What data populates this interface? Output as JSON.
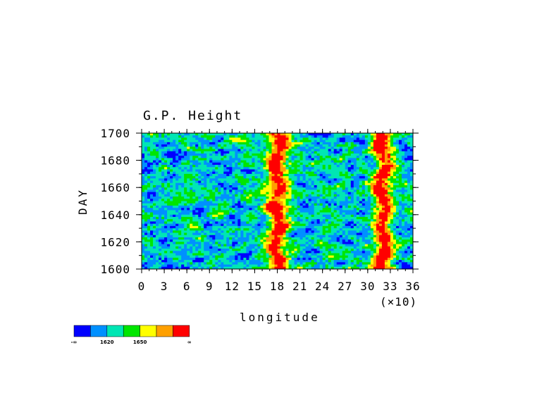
{
  "chart_data": {
    "type": "heatmap",
    "title": "G.P. Height",
    "xlabel": "longitude",
    "ylabel": "DAY",
    "x_multiplier_label": "(×10)",
    "x_ticks": [
      "0",
      "3",
      "6",
      "9",
      "12",
      "15",
      "18",
      "21",
      "24",
      "27",
      "30",
      "33",
      "36"
    ],
    "y_ticks": [
      "1600",
      "1620",
      "1640",
      "1660",
      "1680",
      "1700"
    ],
    "xlim": [
      0,
      36
    ],
    "ylim": [
      1600,
      1700
    ],
    "contour_levels": [
      "-∞",
      "1620",
      "1650",
      "∞"
    ],
    "colors": [
      "#0000ff",
      "#0090ff",
      "#00e6b4",
      "#00e600",
      "#ffff00",
      "#ffa000",
      "#ff0000"
    ],
    "high_bands_longitude": [
      18,
      32
    ],
    "legend_placement": "bottom-left"
  }
}
